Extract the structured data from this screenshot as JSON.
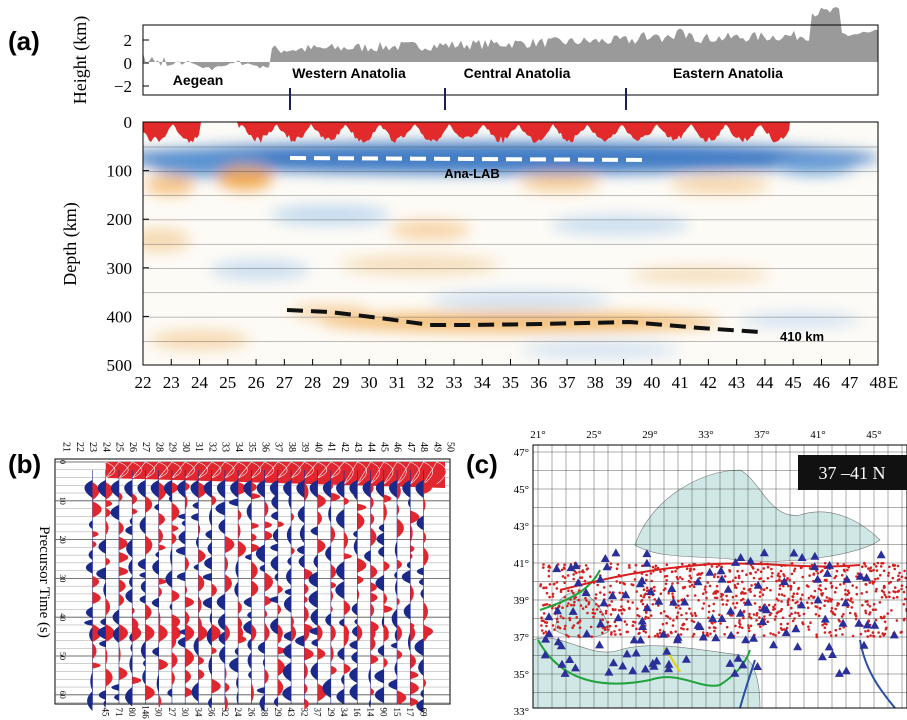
{
  "panel_a": {
    "label": "(a)",
    "height_axis_title": "Height (km)",
    "height_ticks": [
      "2",
      "0",
      "−2"
    ],
    "regions": [
      "Aegean",
      "Western Anatolia",
      "Central Anatolia",
      "Eastern Anatolia"
    ],
    "depth_axis_title": "Depth (km)",
    "depth_ticks": [
      "0",
      "100",
      "200",
      "300",
      "400",
      "500"
    ],
    "annotations": [
      "Ana-LAB",
      "410 km"
    ],
    "x_ticks": [
      "22",
      "23",
      "24",
      "25",
      "26",
      "27",
      "28",
      "29",
      "30",
      "31",
      "32",
      "33",
      "34",
      "35",
      "36",
      "37",
      "38",
      "39",
      "40",
      "41",
      "42",
      "43",
      "44",
      "45",
      "46",
      "47",
      "48"
    ],
    "x_unit": "E"
  },
  "panel_b": {
    "label": "(b)",
    "top_ticks": [
      "21",
      "22",
      "23",
      "24",
      "25",
      "26",
      "27",
      "28",
      "29",
      "30",
      "31",
      "32",
      "33",
      "34",
      "35",
      "36",
      "37",
      "38",
      "39",
      "40",
      "41",
      "42",
      "43",
      "44",
      "45",
      "46",
      "47",
      "48",
      "49",
      "50"
    ],
    "y_axis_title": "Precursor Time (s)",
    "y_ticks": [
      "0",
      "10",
      "20",
      "30",
      "40",
      "50",
      "60"
    ],
    "bottom_labels": [
      "45",
      "71",
      "80",
      "146",
      "30",
      "27",
      "30",
      "34",
      "36",
      "32",
      "24",
      "26",
      "28",
      "29",
      "43",
      "32",
      "37",
      "29",
      "34",
      "16",
      "14",
      "90",
      "15",
      "17",
      "69"
    ]
  },
  "panel_c": {
    "label": "(c)",
    "lon_ticks": [
      "21°",
      "25°",
      "29°",
      "33°",
      "37°",
      "41°",
      "45°"
    ],
    "lat_ticks": [
      "47°",
      "45°",
      "43°",
      "41°",
      "39°",
      "37°",
      "35°",
      "33°"
    ],
    "box_label": "37 –41 N"
  }
}
